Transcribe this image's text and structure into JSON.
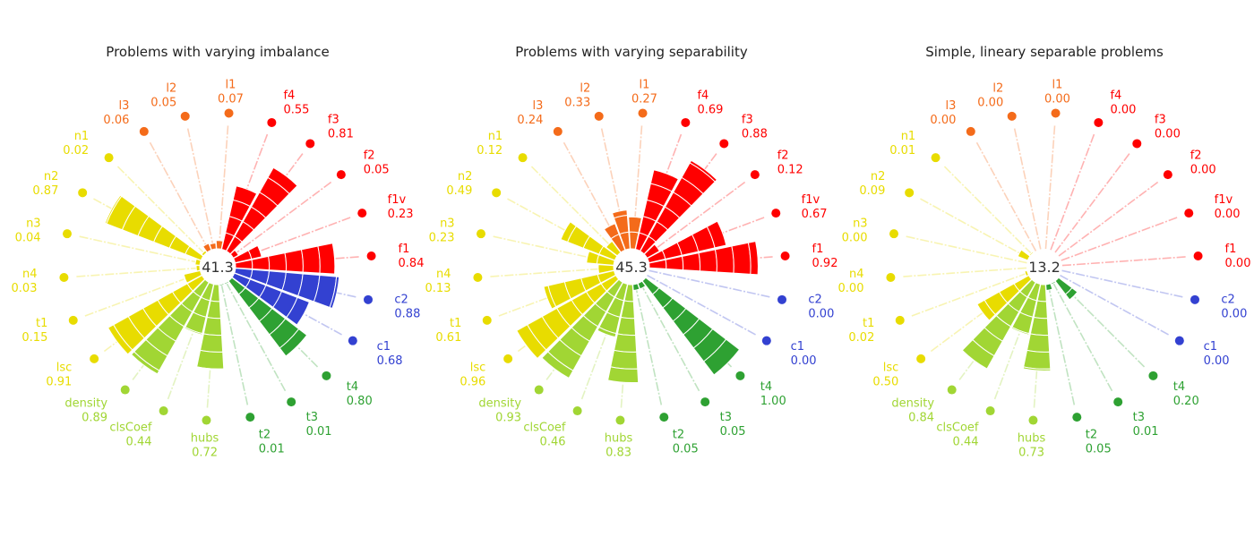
{
  "colors": {
    "f": "#ff0000",
    "l": "#f46b1a",
    "n": "#e8dc00",
    "c": "#3341d1",
    "t": "#2ea132",
    "network": "#a1d634",
    "center_text": "#333333"
  },
  "chart_data": [
    {
      "type": "polar-bar",
      "title": "Problems with varying imbalance",
      "center_value": "41.3",
      "measures": [
        {
          "name": "f1",
          "group": "f",
          "value": "0.84"
        },
        {
          "name": "f1v",
          "group": "f",
          "value": "0.23"
        },
        {
          "name": "f2",
          "group": "f",
          "value": "0.05"
        },
        {
          "name": "f3",
          "group": "f",
          "value": "0.81"
        },
        {
          "name": "f4",
          "group": "f",
          "value": "0.55"
        },
        {
          "name": "l1",
          "group": "l",
          "value": "0.07"
        },
        {
          "name": "l2",
          "group": "l",
          "value": "0.05"
        },
        {
          "name": "l3",
          "group": "l",
          "value": "0.06"
        },
        {
          "name": "n1",
          "group": "n",
          "value": "0.02"
        },
        {
          "name": "n2",
          "group": "n",
          "value": "0.87"
        },
        {
          "name": "n3",
          "group": "n",
          "value": "0.04"
        },
        {
          "name": "n4",
          "group": "n",
          "value": "0.03"
        },
        {
          "name": "t1",
          "group": "n",
          "value": "0.15"
        },
        {
          "name": "lsc",
          "group": "n",
          "value": "0.91"
        },
        {
          "name": "density",
          "group": "network",
          "value": "0.89"
        },
        {
          "name": "clsCoef",
          "group": "network",
          "value": "0.44"
        },
        {
          "name": "hubs",
          "group": "network",
          "value": "0.72"
        },
        {
          "name": "t2",
          "group": "t",
          "value": "0.01"
        },
        {
          "name": "t3",
          "group": "t",
          "value": "0.01"
        },
        {
          "name": "t4",
          "group": "t",
          "value": "0.80"
        },
        {
          "name": "c1",
          "group": "c",
          "value": "0.68"
        },
        {
          "name": "c2",
          "group": "c",
          "value": "0.88"
        }
      ]
    },
    {
      "type": "polar-bar",
      "title": "Problems with varying separability",
      "center_value": "45.3",
      "measures": [
        {
          "name": "f1",
          "group": "f",
          "value": "0.92"
        },
        {
          "name": "f1v",
          "group": "f",
          "value": "0.67"
        },
        {
          "name": "f2",
          "group": "f",
          "value": "0.12"
        },
        {
          "name": "f3",
          "group": "f",
          "value": "0.88"
        },
        {
          "name": "f4",
          "group": "f",
          "value": "0.69"
        },
        {
          "name": "l1",
          "group": "l",
          "value": "0.27"
        },
        {
          "name": "l2",
          "group": "l",
          "value": "0.33"
        },
        {
          "name": "l3",
          "group": "l",
          "value": "0.24"
        },
        {
          "name": "n1",
          "group": "n",
          "value": "0.12"
        },
        {
          "name": "n2",
          "group": "n",
          "value": "0.49"
        },
        {
          "name": "n3",
          "group": "n",
          "value": "0.23"
        },
        {
          "name": "n4",
          "group": "n",
          "value": "0.13"
        },
        {
          "name": "t1",
          "group": "n",
          "value": "0.61"
        },
        {
          "name": "lsc",
          "group": "n",
          "value": "0.96"
        },
        {
          "name": "density",
          "group": "network",
          "value": "0.93"
        },
        {
          "name": "clsCoef",
          "group": "network",
          "value": "0.46"
        },
        {
          "name": "hubs",
          "group": "network",
          "value": "0.83"
        },
        {
          "name": "t2",
          "group": "t",
          "value": "0.05"
        },
        {
          "name": "t3",
          "group": "t",
          "value": "0.05"
        },
        {
          "name": "t4",
          "group": "t",
          "value": "1.00"
        },
        {
          "name": "c1",
          "group": "c",
          "value": "0.00"
        },
        {
          "name": "c2",
          "group": "c",
          "value": "0.00"
        }
      ]
    },
    {
      "type": "polar-bar",
      "title": "Simple, lineary separable problems",
      "center_value": "13.2",
      "measures": [
        {
          "name": "f1",
          "group": "f",
          "value": "0.00"
        },
        {
          "name": "f1v",
          "group": "f",
          "value": "0.00"
        },
        {
          "name": "f2",
          "group": "f",
          "value": "0.00"
        },
        {
          "name": "f3",
          "group": "f",
          "value": "0.00"
        },
        {
          "name": "f4",
          "group": "f",
          "value": "0.00"
        },
        {
          "name": "l1",
          "group": "l",
          "value": "0.00"
        },
        {
          "name": "l2",
          "group": "l",
          "value": "0.00"
        },
        {
          "name": "l3",
          "group": "l",
          "value": "0.00"
        },
        {
          "name": "n1",
          "group": "n",
          "value": "0.01"
        },
        {
          "name": "n2",
          "group": "n",
          "value": "0.09"
        },
        {
          "name": "n3",
          "group": "n",
          "value": "0.00"
        },
        {
          "name": "n4",
          "group": "n",
          "value": "0.00"
        },
        {
          "name": "t1",
          "group": "n",
          "value": "0.02"
        },
        {
          "name": "lsc",
          "group": "n",
          "value": "0.50"
        },
        {
          "name": "density",
          "group": "network",
          "value": "0.84"
        },
        {
          "name": "clsCoef",
          "group": "network",
          "value": "0.44"
        },
        {
          "name": "hubs",
          "group": "network",
          "value": "0.73"
        },
        {
          "name": "t2",
          "group": "t",
          "value": "0.05"
        },
        {
          "name": "t3",
          "group": "t",
          "value": "0.01"
        },
        {
          "name": "t4",
          "group": "t",
          "value": "0.20"
        },
        {
          "name": "c1",
          "group": "c",
          "value": "0.00"
        },
        {
          "name": "c2",
          "group": "c",
          "value": "0.00"
        }
      ]
    }
  ]
}
